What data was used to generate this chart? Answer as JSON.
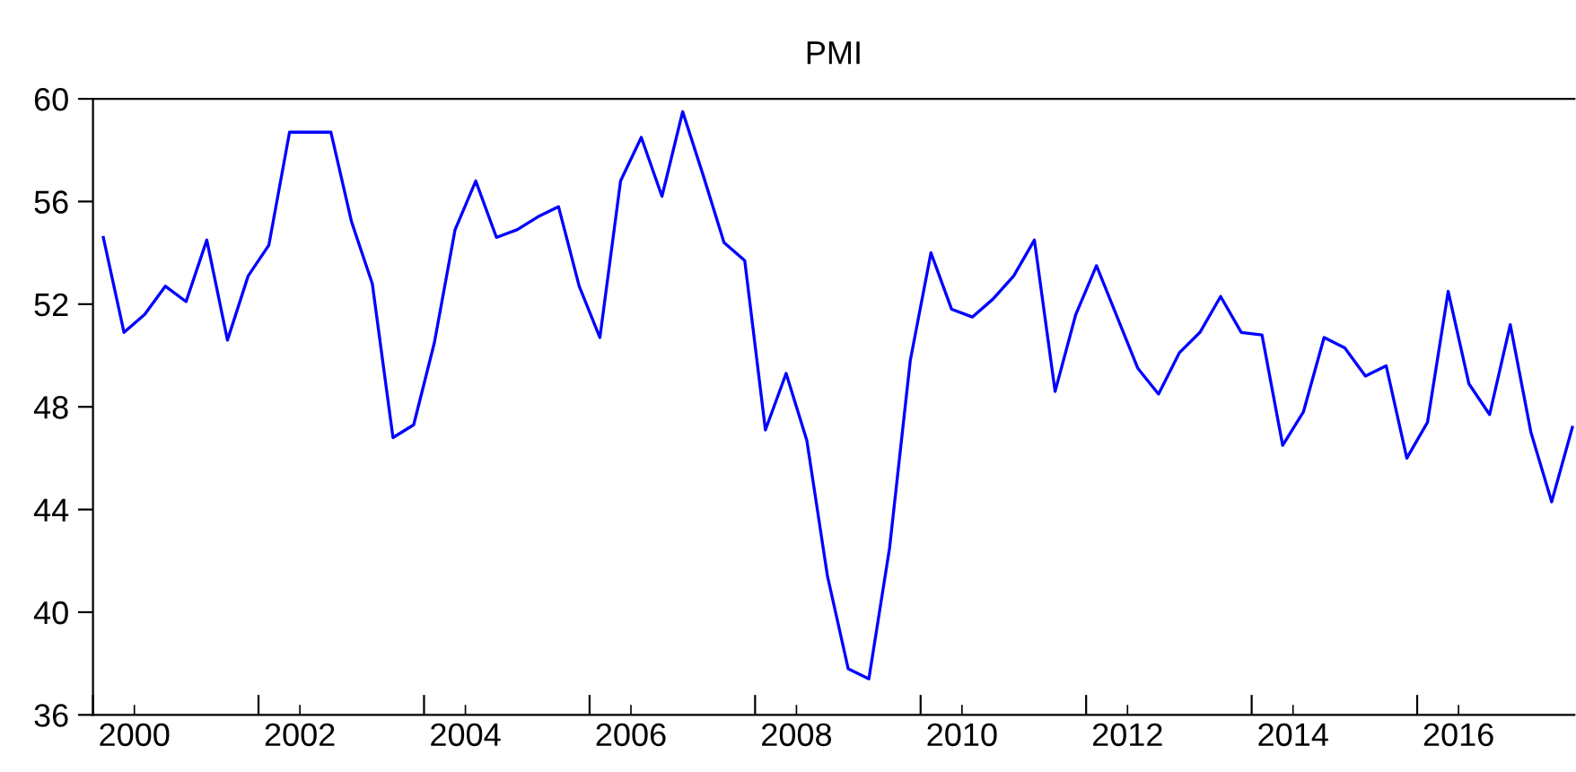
{
  "chart_data": {
    "type": "line",
    "title": "PMI",
    "x": [
      2000.125,
      2000.375,
      2000.625,
      2000.875,
      2001.125,
      2001.375,
      2001.625,
      2001.875,
      2002.125,
      2002.375,
      2002.625,
      2002.875,
      2003.125,
      2003.375,
      2003.625,
      2003.875,
      2004.125,
      2004.375,
      2004.625,
      2004.875,
      2005.125,
      2005.375,
      2005.625,
      2005.875,
      2006.125,
      2006.375,
      2006.625,
      2006.875,
      2007.125,
      2007.375,
      2007.625,
      2007.875,
      2008.125,
      2008.375,
      2008.625,
      2008.875,
      2009.125,
      2009.375,
      2009.625,
      2009.875,
      2010.125,
      2010.375,
      2010.625,
      2010.875,
      2011.125,
      2011.375,
      2011.625,
      2011.875,
      2012.125,
      2012.375,
      2012.625,
      2012.875,
      2013.125,
      2013.375,
      2013.625,
      2013.875,
      2014.125,
      2014.375,
      2014.625,
      2014.875,
      2015.125,
      2015.375,
      2015.625,
      2015.875,
      2016.125,
      2016.375,
      2016.625,
      2016.875,
      2017.125,
      2017.375,
      2017.625,
      2017.875
    ],
    "series": [
      {
        "color": "#0000ff",
        "values": [
          54.6,
          50.9,
          51.6,
          52.7,
          52.1,
          54.5,
          50.6,
          53.1,
          54.3,
          58.7,
          58.7,
          58.7,
          55.2,
          52.8,
          46.8,
          47.3,
          50.5,
          54.9,
          56.8,
          54.6,
          54.9,
          55.4,
          55.8,
          52.7,
          50.7,
          56.8,
          58.5,
          56.2,
          59.5,
          57.0,
          54.4,
          53.7,
          47.1,
          49.3,
          46.7,
          41.4,
          37.8,
          37.4,
          42.5,
          49.8,
          54.0,
          51.8,
          51.5,
          52.2,
          53.1,
          54.5,
          48.6,
          51.6,
          53.5,
          51.5,
          49.5,
          48.5,
          50.1,
          50.9,
          52.3,
          50.9,
          50.8,
          46.5,
          47.8,
          50.7,
          50.3,
          49.2,
          49.6,
          46.0,
          47.4,
          52.5,
          48.9,
          47.7,
          51.2,
          47.0,
          44.3,
          47.2
        ]
      }
    ],
    "xlim": [
      2000,
      2017.9
    ],
    "xticks": [
      {
        "value": 2000,
        "label": null
      },
      {
        "value": 2000.5,
        "label": "2000"
      },
      {
        "value": 2002,
        "label": null
      },
      {
        "value": 2002.5,
        "label": "2002"
      },
      {
        "value": 2004,
        "label": null
      },
      {
        "value": 2004.5,
        "label": "2004"
      },
      {
        "value": 2006,
        "label": null
      },
      {
        "value": 2006.5,
        "label": "2006"
      },
      {
        "value": 2008,
        "label": null
      },
      {
        "value": 2008.5,
        "label": "2008"
      },
      {
        "value": 2010,
        "label": null
      },
      {
        "value": 2010.5,
        "label": "2010"
      },
      {
        "value": 2012,
        "label": null
      },
      {
        "value": 2012.5,
        "label": "2012"
      },
      {
        "value": 2014,
        "label": null
      },
      {
        "value": 2014.5,
        "label": "2014"
      },
      {
        "value": 2016,
        "label": null
      },
      {
        "value": 2016.5,
        "label": "2016"
      }
    ],
    "ylim": [
      36,
      60
    ],
    "yticks": [
      36,
      40,
      44,
      48,
      52,
      56,
      60
    ],
    "grid": false,
    "legend": false,
    "marker": "none",
    "line_style": "solid"
  }
}
